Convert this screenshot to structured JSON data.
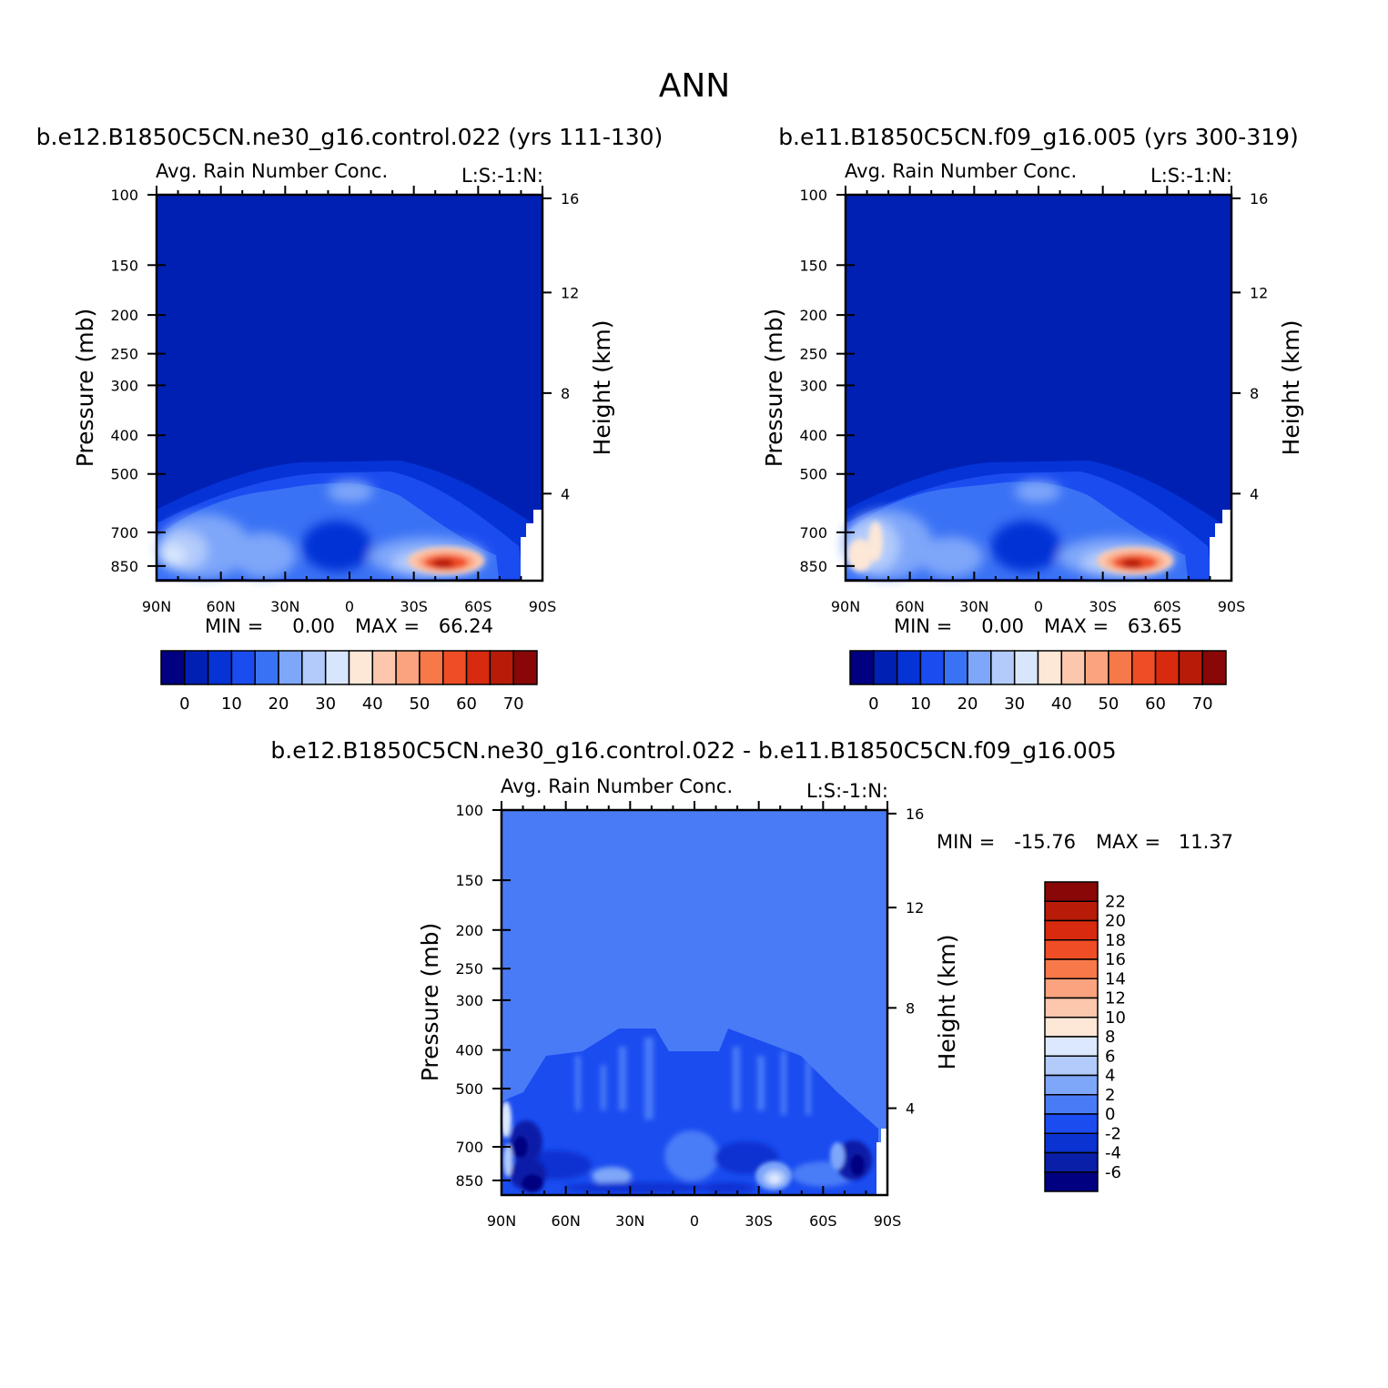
{
  "figure": {
    "title": "ANN"
  },
  "palettes": {
    "abs": [
      "#000080",
      "#0020b4",
      "#0533d6",
      "#1b4cf0",
      "#3a72f5",
      "#7ea6f9",
      "#b2cbfb",
      "#d7e6fd",
      "#fde7d7",
      "#fcc7ad",
      "#fba37e",
      "#f77849",
      "#ef4d25",
      "#d82a0e",
      "#b81c08",
      "#8a0707"
    ],
    "diff": [
      "#000080",
      "#0a1fa8",
      "#0a33d1",
      "#1b4cf0",
      "#4a7bf7",
      "#7ea6f9",
      "#b2cbfb",
      "#dbe8fe",
      "#fde7d7",
      "#fcc7ad",
      "#fba37e",
      "#f77849",
      "#ef4d25",
      "#d82a0e",
      "#b81c08",
      "#8a0707"
    ]
  },
  "chart_data": [
    {
      "type": "heatmap",
      "title": "b.e12.B1850C5CN.ne30_g16.control.022 (yrs 111-130)",
      "subtitle_left": "Avg. Rain Number Conc.",
      "subtitle_right": "L:S:-1:N:",
      "ylabel": "Pressure (mb)",
      "ylabel_right": "Height (km)",
      "x_ticks": [
        "90N",
        "60N",
        "30N",
        "0",
        "30S",
        "60S",
        "90S"
      ],
      "y_ticks": [
        "100",
        "150",
        "200",
        "250",
        "300",
        "400",
        "500",
        "700",
        "850"
      ],
      "y_ticks_right": [
        "16",
        "12",
        "8",
        "4"
      ],
      "stats": {
        "min_label": "MIN =",
        "min": "0.00",
        "max_label": "MAX =",
        "max": "66.24"
      },
      "colorbar": {
        "orientation": "horizontal",
        "labels": [
          "0",
          "10",
          "20",
          "30",
          "40",
          "50",
          "60",
          "70"
        ]
      },
      "ylim_mb": [
        100,
        925
      ],
      "features": [
        {
          "lat": -45,
          "p": 860,
          "value": 66.24
        }
      ]
    },
    {
      "type": "heatmap",
      "title": "b.e11.B1850C5CN.f09_g16.005 (yrs 300-319)",
      "subtitle_left": "Avg. Rain Number Conc.",
      "subtitle_right": "L:S:-1:N:",
      "ylabel": "Pressure (mb)",
      "ylabel_right": "Height (km)",
      "x_ticks": [
        "90N",
        "60N",
        "30N",
        "0",
        "30S",
        "60S",
        "90S"
      ],
      "y_ticks": [
        "100",
        "150",
        "200",
        "250",
        "300",
        "400",
        "500",
        "700",
        "850"
      ],
      "y_ticks_right": [
        "16",
        "12",
        "8",
        "4"
      ],
      "stats": {
        "min_label": "MIN =",
        "min": "0.00",
        "max_label": "MAX =",
        "max": "63.65"
      },
      "colorbar": {
        "orientation": "horizontal",
        "labels": [
          "0",
          "10",
          "20",
          "30",
          "40",
          "50",
          "60",
          "70"
        ]
      },
      "ylim_mb": [
        100,
        925
      ],
      "features": [
        {
          "lat": -45,
          "p": 860,
          "value": 63.65
        }
      ]
    },
    {
      "type": "heatmap",
      "title": "b.e12.B1850C5CN.ne30_g16.control.022 - b.e11.B1850C5CN.f09_g16.005",
      "subtitle_left": "Avg. Rain Number Conc.",
      "subtitle_right": "L:S:-1:N:",
      "ylabel": "Pressure (mb)",
      "ylabel_right": "Height (km)",
      "x_ticks": [
        "90N",
        "60N",
        "30N",
        "0",
        "30S",
        "60S",
        "90S"
      ],
      "y_ticks": [
        "100",
        "150",
        "200",
        "250",
        "300",
        "400",
        "500",
        "700",
        "850"
      ],
      "y_ticks_right": [
        "16",
        "12",
        "8",
        "4"
      ],
      "stats": {
        "min_label": "MIN =",
        "min": "-15.76",
        "max_label": "MAX =",
        "max": "11.37"
      },
      "colorbar": {
        "orientation": "vertical",
        "labels": [
          "22",
          "20",
          "18",
          "16",
          "14",
          "12",
          "10",
          "8",
          "6",
          "4",
          "2",
          "0",
          "-2",
          "-4",
          "-6"
        ]
      },
      "ylim_mb": [
        100,
        925
      ]
    }
  ]
}
